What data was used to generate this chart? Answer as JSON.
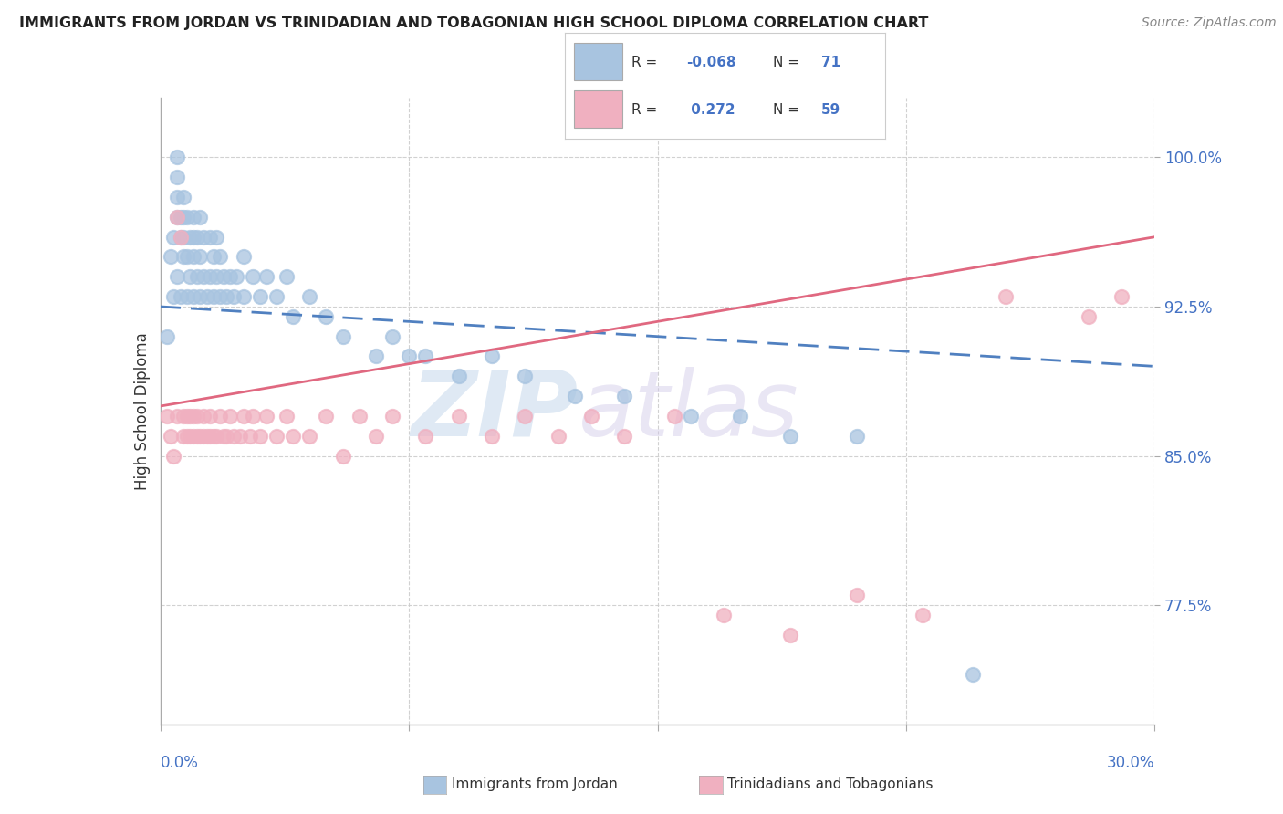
{
  "title": "IMMIGRANTS FROM JORDAN VS TRINIDADIAN AND TOBAGONIAN HIGH SCHOOL DIPLOMA CORRELATION CHART",
  "source": "Source: ZipAtlas.com",
  "ylabel": "High School Diploma",
  "ytick_values": [
    0.775,
    0.85,
    0.925,
    1.0
  ],
  "xlim": [
    0.0,
    0.3
  ],
  "ylim": [
    0.715,
    1.03
  ],
  "color_blue": "#a8c4e0",
  "color_pink": "#f0b0c0",
  "color_blue_line": "#5080c0",
  "color_pink_line": "#e06880",
  "watermark_zip": "ZIP",
  "watermark_atlas": "atlas",
  "legend_r1_label": "R = ",
  "legend_r1_val": "-0.068",
  "legend_n1_label": "N = ",
  "legend_n1_val": "71",
  "legend_r2_label": "R = ",
  "legend_r2_val": " 0.272",
  "legend_n2_label": "N = ",
  "legend_n2_val": "59",
  "jordan_x": [
    0.002,
    0.003,
    0.004,
    0.004,
    0.005,
    0.005,
    0.005,
    0.005,
    0.005,
    0.006,
    0.006,
    0.006,
    0.007,
    0.007,
    0.007,
    0.007,
    0.008,
    0.008,
    0.008,
    0.009,
    0.009,
    0.01,
    0.01,
    0.01,
    0.01,
    0.011,
    0.011,
    0.012,
    0.012,
    0.012,
    0.013,
    0.013,
    0.014,
    0.015,
    0.015,
    0.016,
    0.016,
    0.017,
    0.017,
    0.018,
    0.018,
    0.019,
    0.02,
    0.021,
    0.022,
    0.023,
    0.025,
    0.025,
    0.028,
    0.03,
    0.032,
    0.035,
    0.038,
    0.04,
    0.045,
    0.05,
    0.055,
    0.065,
    0.07,
    0.075,
    0.08,
    0.09,
    0.1,
    0.11,
    0.125,
    0.14,
    0.16,
    0.175,
    0.19,
    0.21,
    0.245
  ],
  "jordan_y": [
    0.91,
    0.95,
    0.93,
    0.96,
    0.94,
    0.97,
    0.98,
    0.99,
    1.0,
    0.93,
    0.96,
    0.97,
    0.95,
    0.96,
    0.97,
    0.98,
    0.93,
    0.95,
    0.97,
    0.94,
    0.96,
    0.93,
    0.95,
    0.96,
    0.97,
    0.94,
    0.96,
    0.93,
    0.95,
    0.97,
    0.94,
    0.96,
    0.93,
    0.94,
    0.96,
    0.93,
    0.95,
    0.94,
    0.96,
    0.93,
    0.95,
    0.94,
    0.93,
    0.94,
    0.93,
    0.94,
    0.93,
    0.95,
    0.94,
    0.93,
    0.94,
    0.93,
    0.94,
    0.92,
    0.93,
    0.92,
    0.91,
    0.9,
    0.91,
    0.9,
    0.9,
    0.89,
    0.9,
    0.89,
    0.88,
    0.88,
    0.87,
    0.87,
    0.86,
    0.86,
    0.74
  ],
  "trini_x": [
    0.002,
    0.003,
    0.004,
    0.005,
    0.005,
    0.006,
    0.007,
    0.007,
    0.008,
    0.008,
    0.009,
    0.009,
    0.01,
    0.01,
    0.011,
    0.011,
    0.012,
    0.013,
    0.013,
    0.014,
    0.015,
    0.015,
    0.016,
    0.017,
    0.018,
    0.019,
    0.02,
    0.021,
    0.022,
    0.024,
    0.025,
    0.027,
    0.028,
    0.03,
    0.032,
    0.035,
    0.038,
    0.04,
    0.045,
    0.05,
    0.055,
    0.06,
    0.065,
    0.07,
    0.08,
    0.09,
    0.1,
    0.11,
    0.12,
    0.13,
    0.14,
    0.155,
    0.17,
    0.19,
    0.21,
    0.23,
    0.255,
    0.28,
    0.29
  ],
  "trini_y": [
    0.87,
    0.86,
    0.85,
    0.87,
    0.97,
    0.96,
    0.86,
    0.87,
    0.86,
    0.87,
    0.86,
    0.87,
    0.86,
    0.87,
    0.86,
    0.87,
    0.86,
    0.86,
    0.87,
    0.86,
    0.86,
    0.87,
    0.86,
    0.86,
    0.87,
    0.86,
    0.86,
    0.87,
    0.86,
    0.86,
    0.87,
    0.86,
    0.87,
    0.86,
    0.87,
    0.86,
    0.87,
    0.86,
    0.86,
    0.87,
    0.85,
    0.87,
    0.86,
    0.87,
    0.86,
    0.87,
    0.86,
    0.87,
    0.86,
    0.87,
    0.86,
    0.87,
    0.77,
    0.76,
    0.78,
    0.77,
    0.93,
    0.92,
    0.93
  ]
}
